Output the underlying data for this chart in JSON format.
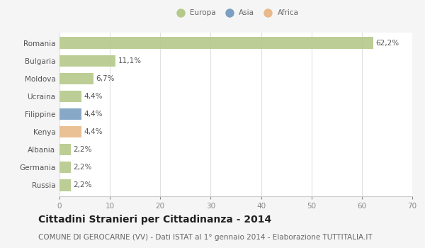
{
  "categories": [
    "Romania",
    "Bulgaria",
    "Moldova",
    "Ucraina",
    "Filippine",
    "Kenya",
    "Albania",
    "Germania",
    "Russia"
  ],
  "values": [
    62.2,
    11.1,
    6.7,
    4.4,
    4.4,
    4.4,
    2.2,
    2.2,
    2.2
  ],
  "labels": [
    "62,2%",
    "11,1%",
    "6,7%",
    "4,4%",
    "4,4%",
    "4,4%",
    "2,2%",
    "2,2%",
    "2,2%"
  ],
  "colors": [
    "#b5c98a",
    "#b5c98a",
    "#b5c98a",
    "#b5c98a",
    "#7b9fc2",
    "#e8b98a",
    "#b5c98a",
    "#b5c98a",
    "#b5c98a"
  ],
  "legend_labels": [
    "Europa",
    "Asia",
    "Africa"
  ],
  "legend_colors": [
    "#b5c98a",
    "#7b9fc2",
    "#e8b98a"
  ],
  "xlim": [
    0,
    70
  ],
  "xticks": [
    0,
    10,
    20,
    30,
    40,
    50,
    60,
    70
  ],
  "title": "Cittadini Stranieri per Cittadinanza - 2014",
  "subtitle": "COMUNE DI GEROCARNE (VV) - Dati ISTAT al 1° gennaio 2014 - Elaborazione TUTTITALIA.IT",
  "fig_bg_color": "#f5f5f5",
  "plot_bg_color": "#ffffff",
  "grid_color": "#e0e0e0",
  "title_fontsize": 10,
  "subtitle_fontsize": 7.5,
  "label_fontsize": 7.5,
  "tick_fontsize": 7.5,
  "bar_height": 0.65
}
